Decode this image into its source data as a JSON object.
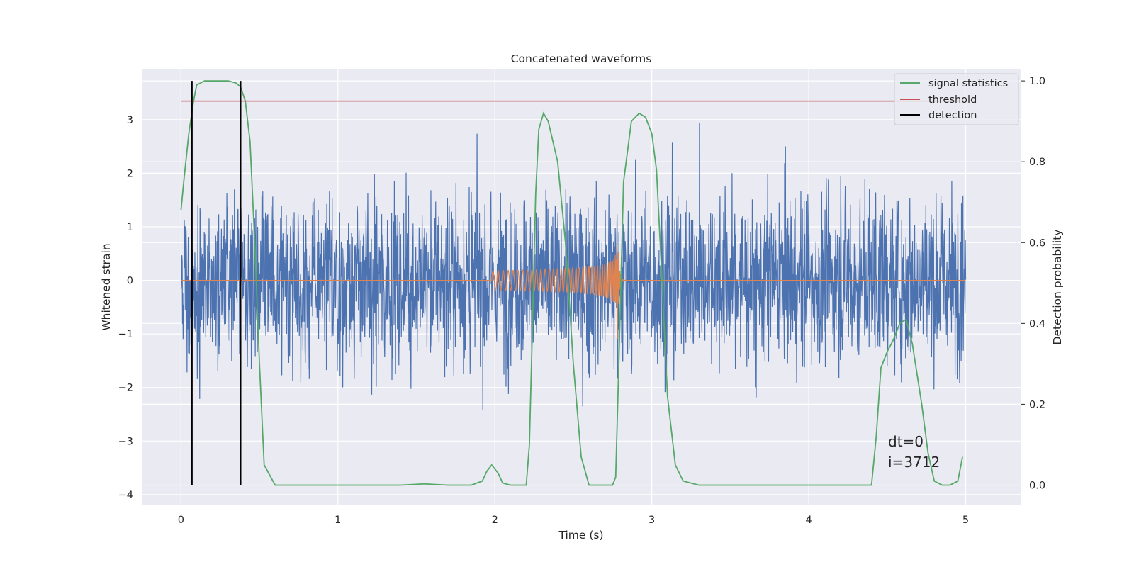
{
  "chart_data": {
    "type": "line",
    "title": "Concatenated waveforms",
    "xlabel": "Time (s)",
    "ylabel_left": "Whitened strain",
    "ylabel_right": "Detection probability",
    "xlim": [
      -0.25,
      5.35
    ],
    "ylim_left": [
      -4.2,
      3.95
    ],
    "ylim_right": [
      -0.05,
      1.03
    ],
    "x_ticks": [
      0,
      1,
      2,
      3,
      4,
      5
    ],
    "x_tick_labels": [
      "0",
      "1",
      "2",
      "3",
      "4",
      "5"
    ],
    "y_left_ticks": [
      3,
      2,
      1,
      0,
      -1,
      -2,
      -3,
      -4
    ],
    "y_left_tick_labels": [
      "3",
      "2",
      "1",
      "0",
      "−1",
      "−2",
      "−3",
      "−4"
    ],
    "y_right_ticks": [
      1.0,
      0.8,
      0.6,
      0.4,
      0.2,
      0.0
    ],
    "y_right_tick_labels": [
      "1.0",
      "0.8",
      "0.6",
      "0.4",
      "0.2",
      "0.0"
    ],
    "grid": true,
    "legend_position": "top-right",
    "series": [
      {
        "name": "whitened strain",
        "color": "#4c72b0",
        "axis": "left",
        "x_range": [
          0,
          5
        ],
        "amplitude_envelope": {
          "typical": 2.0,
          "max": 3.4,
          "min": -3.85
        }
      },
      {
        "name": "injected waveform",
        "color": "#dd8452",
        "axis": "left",
        "x_range": [
          0,
          5
        ],
        "chirp": {
          "start": 1.98,
          "merger": 2.78,
          "ringdown_end": 2.84,
          "initial_amplitude": 0.18,
          "peak_amplitude": 1.4
        }
      },
      {
        "name": "signal statistics",
        "color": "#55a868",
        "axis": "right",
        "x": [
          0,
          0.02,
          0.05,
          0.08,
          0.1,
          0.15,
          0.2,
          0.3,
          0.35,
          0.38,
          0.41,
          0.44,
          0.47,
          0.5,
          0.53,
          0.6,
          1.0,
          1.4,
          1.55,
          1.7,
          1.85,
          1.92,
          1.95,
          1.98,
          2.02,
          2.05,
          2.1,
          2.2,
          2.22,
          2.24,
          2.26,
          2.28,
          2.31,
          2.34,
          2.4,
          2.45,
          2.5,
          2.55,
          2.6,
          2.75,
          2.77,
          2.79,
          2.82,
          2.87,
          2.92,
          2.96,
          3.0,
          3.03,
          3.06,
          3.1,
          3.15,
          3.2,
          3.3,
          3.5,
          4.0,
          4.4,
          4.43,
          4.46,
          4.5,
          4.54,
          4.58,
          4.62,
          4.66,
          4.72,
          4.76,
          4.8,
          4.85,
          4.9,
          4.95,
          4.98
        ],
        "y": [
          0.68,
          0.76,
          0.87,
          0.95,
          0.99,
          1.0,
          1.0,
          1.0,
          0.995,
          0.985,
          0.95,
          0.85,
          0.6,
          0.3,
          0.05,
          0.0,
          0.0,
          0.0,
          0.003,
          0.0,
          0.0,
          0.01,
          0.035,
          0.05,
          0.03,
          0.005,
          0.0,
          0.0,
          0.1,
          0.4,
          0.72,
          0.88,
          0.92,
          0.9,
          0.8,
          0.6,
          0.3,
          0.07,
          0.0,
          0.0,
          0.02,
          0.3,
          0.75,
          0.9,
          0.92,
          0.91,
          0.87,
          0.78,
          0.55,
          0.22,
          0.05,
          0.01,
          0.0,
          0.0,
          0.0,
          0.0,
          0.12,
          0.29,
          0.33,
          0.36,
          0.4,
          0.41,
          0.35,
          0.2,
          0.08,
          0.01,
          0.0,
          0.0,
          0.01,
          0.07
        ]
      },
      {
        "name": "threshold",
        "color": "#c44e52",
        "axis": "right",
        "x": [
          0,
          5
        ],
        "y": [
          0.95,
          0.95
        ]
      },
      {
        "name": "detection",
        "color": "#000000",
        "axis": "right",
        "x": [
          0.07,
          0.38
        ],
        "y_range": [
          0.0,
          1.0
        ]
      }
    ],
    "legend": [
      "signal statistics",
      "threshold",
      "detection"
    ],
    "annotations": [
      "dt=0",
      "i=3712"
    ]
  }
}
